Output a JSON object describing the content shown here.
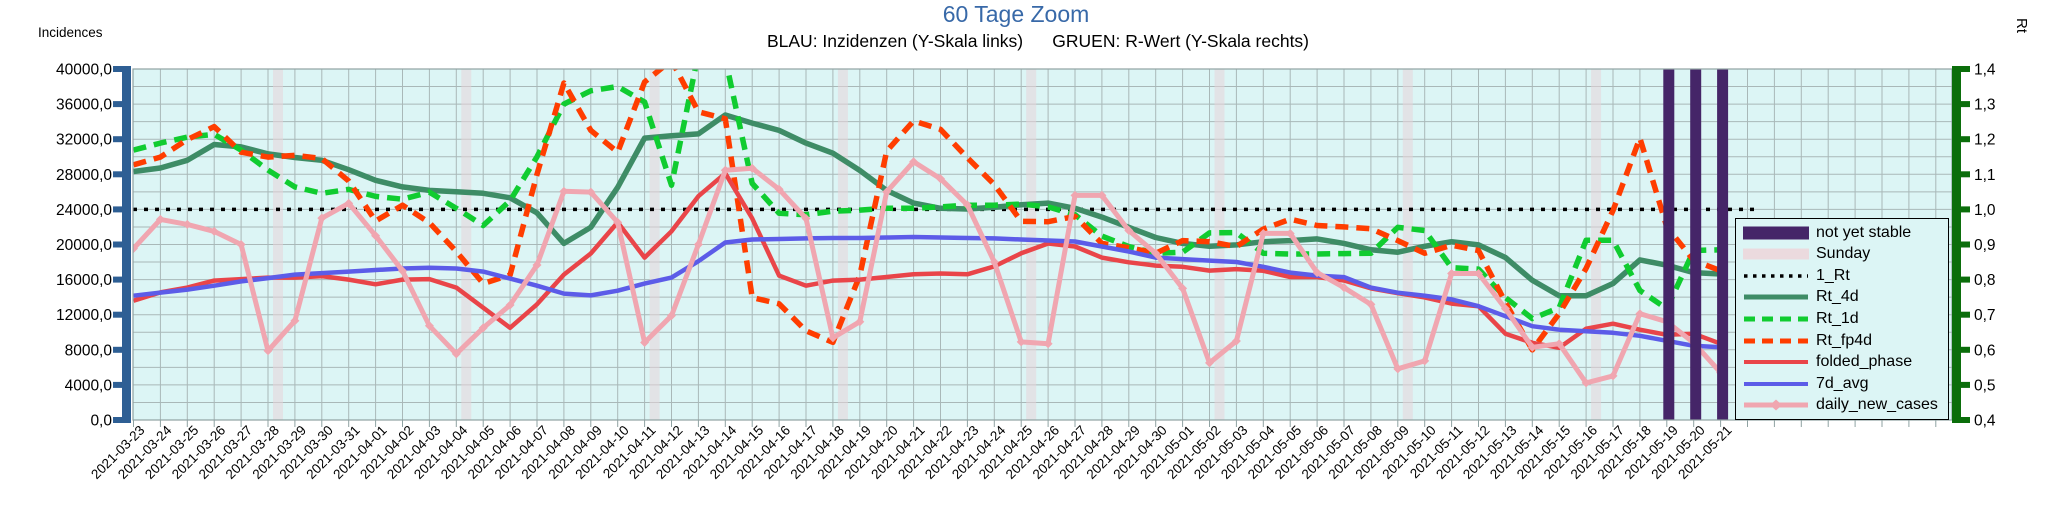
{
  "chart_data": {
    "type": "line",
    "title": "60 Tage Zoom",
    "subtitle": "BLAU: Inzidenzen (Y-Skala links)      GRUEN: R-Wert (Y-Skala rechts)",
    "grid": true,
    "legend_position": "right-inside",
    "left_axis": {
      "label": "Incidences",
      "min": 0,
      "max": 40000,
      "step": 4000,
      "tick_labels": [
        "40000,0",
        "36000,0",
        "32000,0",
        "28000,0",
        "24000,0",
        "20000,0",
        "16000,0",
        "12000,0",
        "8000,0",
        "4000,0",
        "0,0"
      ]
    },
    "right_axis": {
      "label": "Rt",
      "min": 0.4,
      "max": 1.4,
      "step": 0.1,
      "tick_labels": [
        "1,4",
        "1,3",
        "1,2",
        "1,1",
        "1,0",
        "0,9",
        "0,8",
        "0,7",
        "0,6",
        "0,5",
        "0,4"
      ]
    },
    "x": [
      "2021-03-23",
      "2021-03-24",
      "2021-03-25",
      "2021-03-26",
      "2021-03-27",
      "2021-03-28",
      "2021-03-29",
      "2021-03-30",
      "2021-03-31",
      "2021-04-01",
      "2021-04-02",
      "2021-04-03",
      "2021-04-04",
      "2021-04-05",
      "2021-04-06",
      "2021-04-07",
      "2021-04-08",
      "2021-04-09",
      "2021-04-10",
      "2021-04-11",
      "2021-04-12",
      "2021-04-13",
      "2021-04-14",
      "2021-04-15",
      "2021-04-16",
      "2021-04-17",
      "2021-04-18",
      "2021-04-19",
      "2021-04-20",
      "2021-04-21",
      "2021-04-22",
      "2021-04-23",
      "2021-04-24",
      "2021-04-25",
      "2021-04-26",
      "2021-04-27",
      "2021-04-28",
      "2021-04-29",
      "2021-04-30",
      "2021-05-01",
      "2021-05-02",
      "2021-05-03",
      "2021-05-04",
      "2021-05-05",
      "2021-05-06",
      "2021-05-07",
      "2021-05-08",
      "2021-05-09",
      "2021-05-10",
      "2021-05-11",
      "2021-05-12",
      "2021-05-13",
      "2021-05-14",
      "2021-05-15",
      "2021-05-16",
      "2021-05-17",
      "2021-05-18",
      "2021-05-19",
      "2021-05-20",
      "2021-05-21"
    ],
    "reference_line": {
      "name": "1_Rt",
      "axis": "right",
      "value": 1.0,
      "color": "#000000",
      "dash": "4 7",
      "width": 3.5,
      "x_end": 1757
    },
    "bands": {
      "sunday": {
        "label": "Sunday",
        "color": "#E8D3D8",
        "opacity": 0.55,
        "dates": [
          "2021-03-28",
          "2021-04-04",
          "2021-04-11",
          "2021-04-18",
          "2021-04-25",
          "2021-05-02",
          "2021-05-09",
          "2021-05-16"
        ]
      },
      "not_yet_stable": {
        "label": "not yet stable",
        "color": "#452568",
        "opacity": 1,
        "dates": [
          "2021-05-19",
          "2021-05-20",
          "2021-05-21"
        ]
      }
    },
    "series": [
      {
        "name": "Rt_4d",
        "axis": "right",
        "color": "#3E8C66",
        "width": 5.5,
        "dash": null,
        "marker": null,
        "values": [
          1.108,
          1.118,
          1.14,
          1.185,
          1.178,
          1.158,
          1.148,
          1.14,
          1.113,
          1.083,
          1.064,
          1.054,
          1.05,
          1.046,
          1.033,
          0.99,
          0.903,
          0.949,
          1.063,
          1.203,
          1.21,
          1.215,
          1.269,
          1.246,
          1.225,
          1.189,
          1.16,
          1.111,
          1.054,
          1.018,
          1.003,
          1.001,
          1.006,
          1.013,
          1.018,
          1.003,
          0.978,
          0.949,
          0.92,
          0.903,
          0.895,
          0.899,
          0.908,
          0.911,
          0.916,
          0.903,
          0.885,
          0.878,
          0.895,
          0.908,
          0.899,
          0.863,
          0.798,
          0.754,
          0.754,
          0.789,
          0.856,
          0.841,
          0.82,
          0.816
        ]
      },
      {
        "name": "Rt_1d",
        "axis": "right",
        "color": "#10CC30",
        "width": 5.5,
        "dash": "13 8",
        "marker": null,
        "values": [
          1.169,
          1.189,
          1.206,
          1.214,
          1.169,
          1.112,
          1.064,
          1.046,
          1.057,
          1.037,
          1.029,
          1.049,
          1.003,
          0.954,
          1.025,
          1.15,
          1.3,
          1.338,
          1.35,
          1.306,
          1.069,
          1.445,
          1.43,
          1.074,
          0.989,
          0.985,
          0.995,
          0.998,
          1.003,
          1.003,
          1.007,
          1.012,
          1.012,
          1.015,
          1.007,
          0.985,
          0.924,
          0.894,
          0.875,
          0.878,
          0.933,
          0.934,
          0.875,
          0.873,
          0.873,
          0.874,
          0.875,
          0.949,
          0.94,
          0.834,
          0.83,
          0.749,
          0.689,
          0.72,
          0.912,
          0.912,
          0.769,
          0.717,
          0.883,
          0.885
        ]
      },
      {
        "name": "Rt_fp4d",
        "axis": "right",
        "color": "#FF3D00",
        "width": 5.5,
        "dash": "13 8",
        "marker": null,
        "values": [
          1.127,
          1.149,
          1.199,
          1.236,
          1.163,
          1.149,
          1.154,
          1.145,
          1.081,
          0.967,
          1.012,
          0.962,
          0.88,
          0.789,
          0.813,
          1.1,
          1.36,
          1.225,
          1.163,
          1.363,
          1.425,
          1.278,
          1.258,
          0.749,
          0.731,
          0.654,
          0.621,
          0.812,
          1.166,
          1.252,
          1.228,
          1.147,
          1.071,
          0.966,
          0.965,
          0.98,
          0.903,
          0.891,
          0.875,
          0.911,
          0.908,
          0.894,
          0.944,
          0.972,
          0.954,
          0.95,
          0.945,
          0.911,
          0.875,
          0.898,
          0.883,
          0.735,
          0.6,
          0.703,
          0.832,
          0.997,
          1.203,
          0.95,
          0.855,
          0.825
        ]
      },
      {
        "name": "folded_phase",
        "axis": "left",
        "color": "#E94549",
        "width": 4.5,
        "dash": null,
        "marker": null,
        "values": [
          13600,
          14540,
          15090,
          15890,
          16060,
          16230,
          16230,
          16400,
          16000,
          15460,
          16000,
          16060,
          15090,
          12800,
          10510,
          13180,
          16570,
          18970,
          22520,
          18510,
          21500,
          25500,
          28110,
          22970,
          16460,
          15310,
          15890,
          16000,
          16300,
          16600,
          16700,
          16600,
          17500,
          19000,
          20110,
          19770,
          18510,
          17970,
          17600,
          17460,
          17030,
          17200,
          17000,
          16300,
          16300,
          15900,
          15000,
          14450,
          13970,
          13260,
          12970,
          9830,
          8800,
          8230,
          10400,
          10970,
          10290,
          9710,
          9830,
          8690
        ]
      },
      {
        "name": "7d_avg",
        "axis": "left",
        "color": "#5C5CE8",
        "width": 4.5,
        "dash": null,
        "marker": null,
        "values": [
          14170,
          14520,
          14860,
          15310,
          15800,
          16170,
          16570,
          16740,
          16910,
          17090,
          17260,
          17340,
          17260,
          16910,
          16110,
          15310,
          14400,
          14200,
          14740,
          15540,
          16230,
          18100,
          20230,
          20570,
          20630,
          20690,
          20740,
          20740,
          20800,
          20850,
          20800,
          20740,
          20690,
          20570,
          20460,
          20340,
          19770,
          19200,
          18510,
          18340,
          18170,
          18000,
          17460,
          16800,
          16460,
          16290,
          15090,
          14510,
          14170,
          13740,
          12970,
          11830,
          10690,
          10290,
          10110,
          9940,
          9600,
          9030,
          8460,
          8290
        ]
      },
      {
        "name": "daily_new_cases",
        "axis": "left",
        "color": "#F0A6B0",
        "width": 5,
        "dash": null,
        "marker": "diamond",
        "values": [
          19540,
          22860,
          22290,
          21490,
          20000,
          7890,
          11310,
          23000,
          24690,
          21000,
          17000,
          10740,
          7540,
          10500,
          13100,
          17660,
          26060,
          25970,
          22520,
          8830,
          11890,
          20000,
          28460,
          28690,
          26290,
          22970,
          9370,
          11200,
          26000,
          29430,
          27500,
          24500,
          18000,
          8900,
          8690,
          25600,
          25600,
          21600,
          19000,
          15000,
          6510,
          9000,
          21260,
          21260,
          16800,
          15090,
          13170,
          5830,
          6740,
          16690,
          16690,
          12690,
          8290,
          8690,
          4230,
          5030,
          12110,
          11200,
          8800,
          5400
        ]
      }
    ],
    "legend": {
      "items": [
        {
          "key": "not-yet-stable",
          "label": "not yet stable",
          "type": "band",
          "color": "#452568",
          "width": 13
        },
        {
          "key": "sunday",
          "label": "Sunday",
          "type": "band",
          "color": "#EBDADE",
          "width": 11
        },
        {
          "key": "1-rt",
          "label": "1_Rt",
          "type": "line",
          "color": "#000000",
          "dash": "3.5 5.5",
          "width": 3.5
        },
        {
          "key": "rt-4d",
          "label": "Rt_4d",
          "type": "line",
          "color": "#3E8C66",
          "dash": null,
          "width": 5
        },
        {
          "key": "rt-1d",
          "label": "Rt_1d",
          "type": "line",
          "color": "#10CC30",
          "dash": "11 7",
          "width": 5
        },
        {
          "key": "rt-fp4d",
          "label": "Rt_fp4d",
          "type": "line",
          "color": "#FF3D00",
          "dash": "11 7",
          "width": 5
        },
        {
          "key": "folded-phase",
          "label": "folded_phase",
          "type": "line",
          "color": "#E94549",
          "dash": null,
          "width": 4
        },
        {
          "key": "7d-avg",
          "label": "7d_avg",
          "type": "line",
          "color": "#5C5CE8",
          "dash": null,
          "width": 4
        },
        {
          "key": "daily-new-cases",
          "label": "daily_new_cases",
          "type": "line-marker",
          "color": "#F0A6B0",
          "dash": null,
          "width": 5
        }
      ]
    },
    "colors": {
      "plot_background": "#DCF5F5",
      "gridline": "#A9B8B8",
      "frame": "#8FA2A2",
      "left_axis": "#2E5F94",
      "right_axis": "#0B6E0B",
      "title": "#3869A8"
    }
  }
}
